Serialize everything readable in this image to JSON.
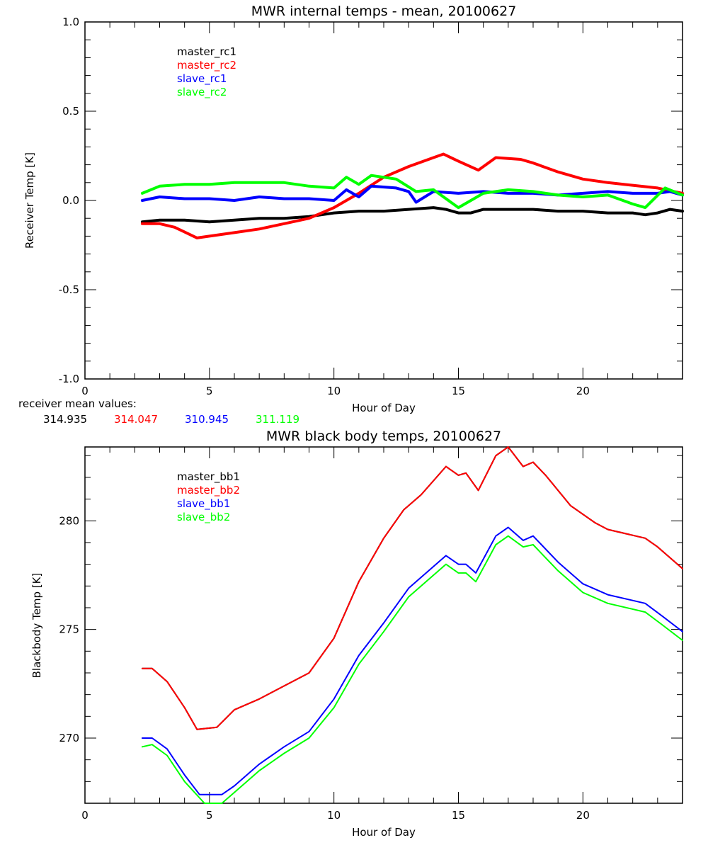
{
  "chart_data": [
    {
      "type": "line",
      "title": "MWR internal temps - mean, 20100627",
      "xlabel": "Hour of Day",
      "ylabel": "Receiver Temp [K]",
      "xlim": [
        0,
        24
      ],
      "ylim": [
        -1.0,
        1.0
      ],
      "xticks": [
        0,
        5,
        10,
        15,
        20
      ],
      "xtick_labels": [
        "0",
        "5",
        "10",
        "15",
        "20"
      ],
      "x_minor_step": 1,
      "yticks": [
        -1.0,
        -0.5,
        0.0,
        0.5,
        1.0
      ],
      "ytick_labels": [
        "-1.0",
        "-0.5",
        "0.0",
        "0.5",
        "1.0"
      ],
      "y_minor_step": 0.1,
      "grid": false,
      "legend_position": "top-left",
      "series": [
        {
          "name": "master_rc1",
          "color": "#000000",
          "x": [
            2.3,
            3,
            4,
            5,
            6,
            7,
            8,
            9,
            10,
            11,
            12,
            13,
            14,
            14.5,
            15,
            15.5,
            16,
            17,
            18,
            19,
            20,
            21,
            22,
            22.5,
            23,
            23.5,
            24
          ],
          "y": [
            -0.12,
            -0.11,
            -0.11,
            -0.12,
            -0.11,
            -0.1,
            -0.1,
            -0.09,
            -0.07,
            -0.06,
            -0.06,
            -0.05,
            -0.04,
            -0.05,
            -0.07,
            -0.07,
            -0.05,
            -0.05,
            -0.05,
            -0.06,
            -0.06,
            -0.07,
            -0.07,
            -0.08,
            -0.07,
            -0.05,
            -0.06
          ]
        },
        {
          "name": "master_rc2",
          "color": "#ff0000",
          "x": [
            2.3,
            3,
            3.6,
            4.5,
            5,
            6,
            7,
            8,
            9,
            10,
            11,
            12,
            13,
            14,
            14.4,
            15,
            15.8,
            16.5,
            17.5,
            18,
            19,
            20,
            21,
            22,
            23,
            24
          ],
          "y": [
            -0.13,
            -0.13,
            -0.15,
            -0.21,
            -0.2,
            -0.18,
            -0.16,
            -0.13,
            -0.1,
            -0.04,
            0.04,
            0.13,
            0.19,
            0.24,
            0.26,
            0.22,
            0.17,
            0.24,
            0.23,
            0.21,
            0.16,
            0.12,
            0.1,
            0.085,
            0.07,
            0.04
          ]
        },
        {
          "name": "slave_rc1",
          "color": "#0000ff",
          "x": [
            2.3,
            3,
            4,
            5,
            6,
            7,
            8,
            9,
            10,
            10.5,
            11,
            11.5,
            12.5,
            13,
            13.3,
            14,
            15,
            16,
            17,
            18,
            19,
            20,
            21,
            22,
            23,
            23.5,
            24
          ],
          "y": [
            0.0,
            0.02,
            0.01,
            0.01,
            0.0,
            0.02,
            0.01,
            0.01,
            0.0,
            0.06,
            0.02,
            0.08,
            0.07,
            0.05,
            -0.01,
            0.05,
            0.04,
            0.05,
            0.04,
            0.04,
            0.03,
            0.04,
            0.05,
            0.04,
            0.04,
            0.05,
            0.03
          ]
        },
        {
          "name": "slave_rc2",
          "color": "#00ff00",
          "x": [
            2.3,
            3,
            4,
            5,
            6,
            7,
            8,
            9,
            10,
            10.5,
            11,
            11.5,
            12.5,
            13.3,
            14,
            15,
            16,
            17,
            18,
            19,
            20,
            21,
            22,
            22.5,
            23.3,
            24
          ],
          "y": [
            0.04,
            0.08,
            0.09,
            0.09,
            0.1,
            0.1,
            0.1,
            0.08,
            0.07,
            0.13,
            0.09,
            0.14,
            0.12,
            0.05,
            0.06,
            -0.04,
            0.04,
            0.06,
            0.05,
            0.03,
            0.02,
            0.03,
            -0.02,
            -0.04,
            0.07,
            0.03
          ]
        }
      ]
    },
    {
      "type": "line",
      "title": "MWR black body temps, 20100627",
      "xlabel": "Hour of Day",
      "ylabel": "Blackbody Temp [K]",
      "xlim": [
        0,
        24
      ],
      "ylim": [
        267.0,
        283.4
      ],
      "xticks": [
        0,
        5,
        10,
        15,
        20
      ],
      "xtick_labels": [
        "0",
        "5",
        "10",
        "15",
        "20"
      ],
      "x_minor_step": 1,
      "yticks": [
        270,
        275,
        280
      ],
      "ytick_labels": [
        "270",
        "275",
        "280"
      ],
      "y_minor_step": 1,
      "grid": false,
      "legend_position": "top-left",
      "series": [
        {
          "name": "master_bb1",
          "color": "#000000",
          "x": [
            2.3,
            2.7,
            3.3,
            4,
            4.5,
            5.3,
            6,
            7,
            8,
            9,
            10,
            11,
            12,
            12.8,
            13.5,
            14.5,
            15,
            15.3,
            15.8,
            16.5,
            17,
            17.6,
            18,
            18.5,
            19.5,
            20.5,
            21,
            22.5,
            23,
            24
          ],
          "y": [
            273.2,
            273.2,
            272.6,
            271.4,
            270.4,
            270.5,
            271.3,
            271.8,
            272.4,
            273.0,
            274.6,
            277.2,
            279.2,
            280.5,
            281.2,
            282.5,
            282.1,
            282.2,
            281.4,
            283.0,
            283.4,
            282.5,
            282.7,
            282.1,
            280.7,
            279.9,
            279.6,
            279.2,
            278.8,
            277.8
          ]
        },
        {
          "name": "master_bb2",
          "color": "#ff0000",
          "x": [
            2.3,
            2.7,
            3.3,
            4,
            4.5,
            5.3,
            6,
            7,
            8,
            9,
            10,
            11,
            12,
            12.8,
            13.5,
            14.5,
            15,
            15.3,
            15.8,
            16.5,
            17,
            17.6,
            18,
            18.5,
            19.5,
            20.5,
            21,
            22.5,
            23,
            24
          ],
          "y": [
            273.2,
            273.2,
            272.6,
            271.4,
            270.4,
            270.5,
            271.3,
            271.8,
            272.4,
            273.0,
            274.6,
            277.2,
            279.2,
            280.5,
            281.2,
            282.5,
            282.1,
            282.2,
            281.4,
            283.0,
            283.4,
            282.5,
            282.7,
            282.1,
            280.7,
            279.9,
            279.6,
            279.2,
            278.8,
            277.8
          ]
        },
        {
          "name": "slave_bb1",
          "color": "#0000ff",
          "x": [
            2.3,
            2.7,
            3.3,
            4,
            4.6,
            5.5,
            6,
            7,
            8,
            9,
            10,
            11,
            12,
            13,
            13.5,
            14.5,
            15,
            15.3,
            15.7,
            16.5,
            17,
            17.6,
            18,
            19,
            20,
            21,
            22.5,
            23.2,
            24
          ],
          "y": [
            270.0,
            270.0,
            269.5,
            268.3,
            267.4,
            267.4,
            267.8,
            268.8,
            269.6,
            270.3,
            271.8,
            273.8,
            275.3,
            276.9,
            277.4,
            278.4,
            278.0,
            278.0,
            277.6,
            279.3,
            279.7,
            279.1,
            279.3,
            278.1,
            277.1,
            276.6,
            276.2,
            275.6,
            274.9
          ]
        },
        {
          "name": "slave_bb2",
          "color": "#00ff00",
          "x": [
            2.3,
            2.7,
            3.3,
            4,
            4.8,
            5.5,
            6,
            7,
            8,
            9,
            10,
            11,
            12,
            13,
            13.5,
            14.5,
            15,
            15.3,
            15.7,
            16.5,
            17,
            17.6,
            18,
            19,
            20,
            21,
            22.5,
            23.2,
            24
          ],
          "y": [
            269.6,
            269.7,
            269.2,
            268.0,
            267.0,
            267.0,
            267.5,
            268.5,
            269.3,
            270.0,
            271.4,
            273.4,
            274.9,
            276.5,
            277.0,
            278.0,
            277.6,
            277.6,
            277.2,
            278.9,
            279.3,
            278.8,
            278.9,
            277.7,
            276.7,
            276.2,
            275.8,
            275.2,
            274.5
          ]
        }
      ]
    }
  ],
  "receiver_mean": {
    "label": "receiver mean values:",
    "values": [
      {
        "text": "314.935",
        "color": "#000000"
      },
      {
        "text": "314.047",
        "color": "#ff0000"
      },
      {
        "text": "310.945",
        "color": "#0000ff"
      },
      {
        "text": "311.119",
        "color": "#00ff00"
      }
    ]
  }
}
